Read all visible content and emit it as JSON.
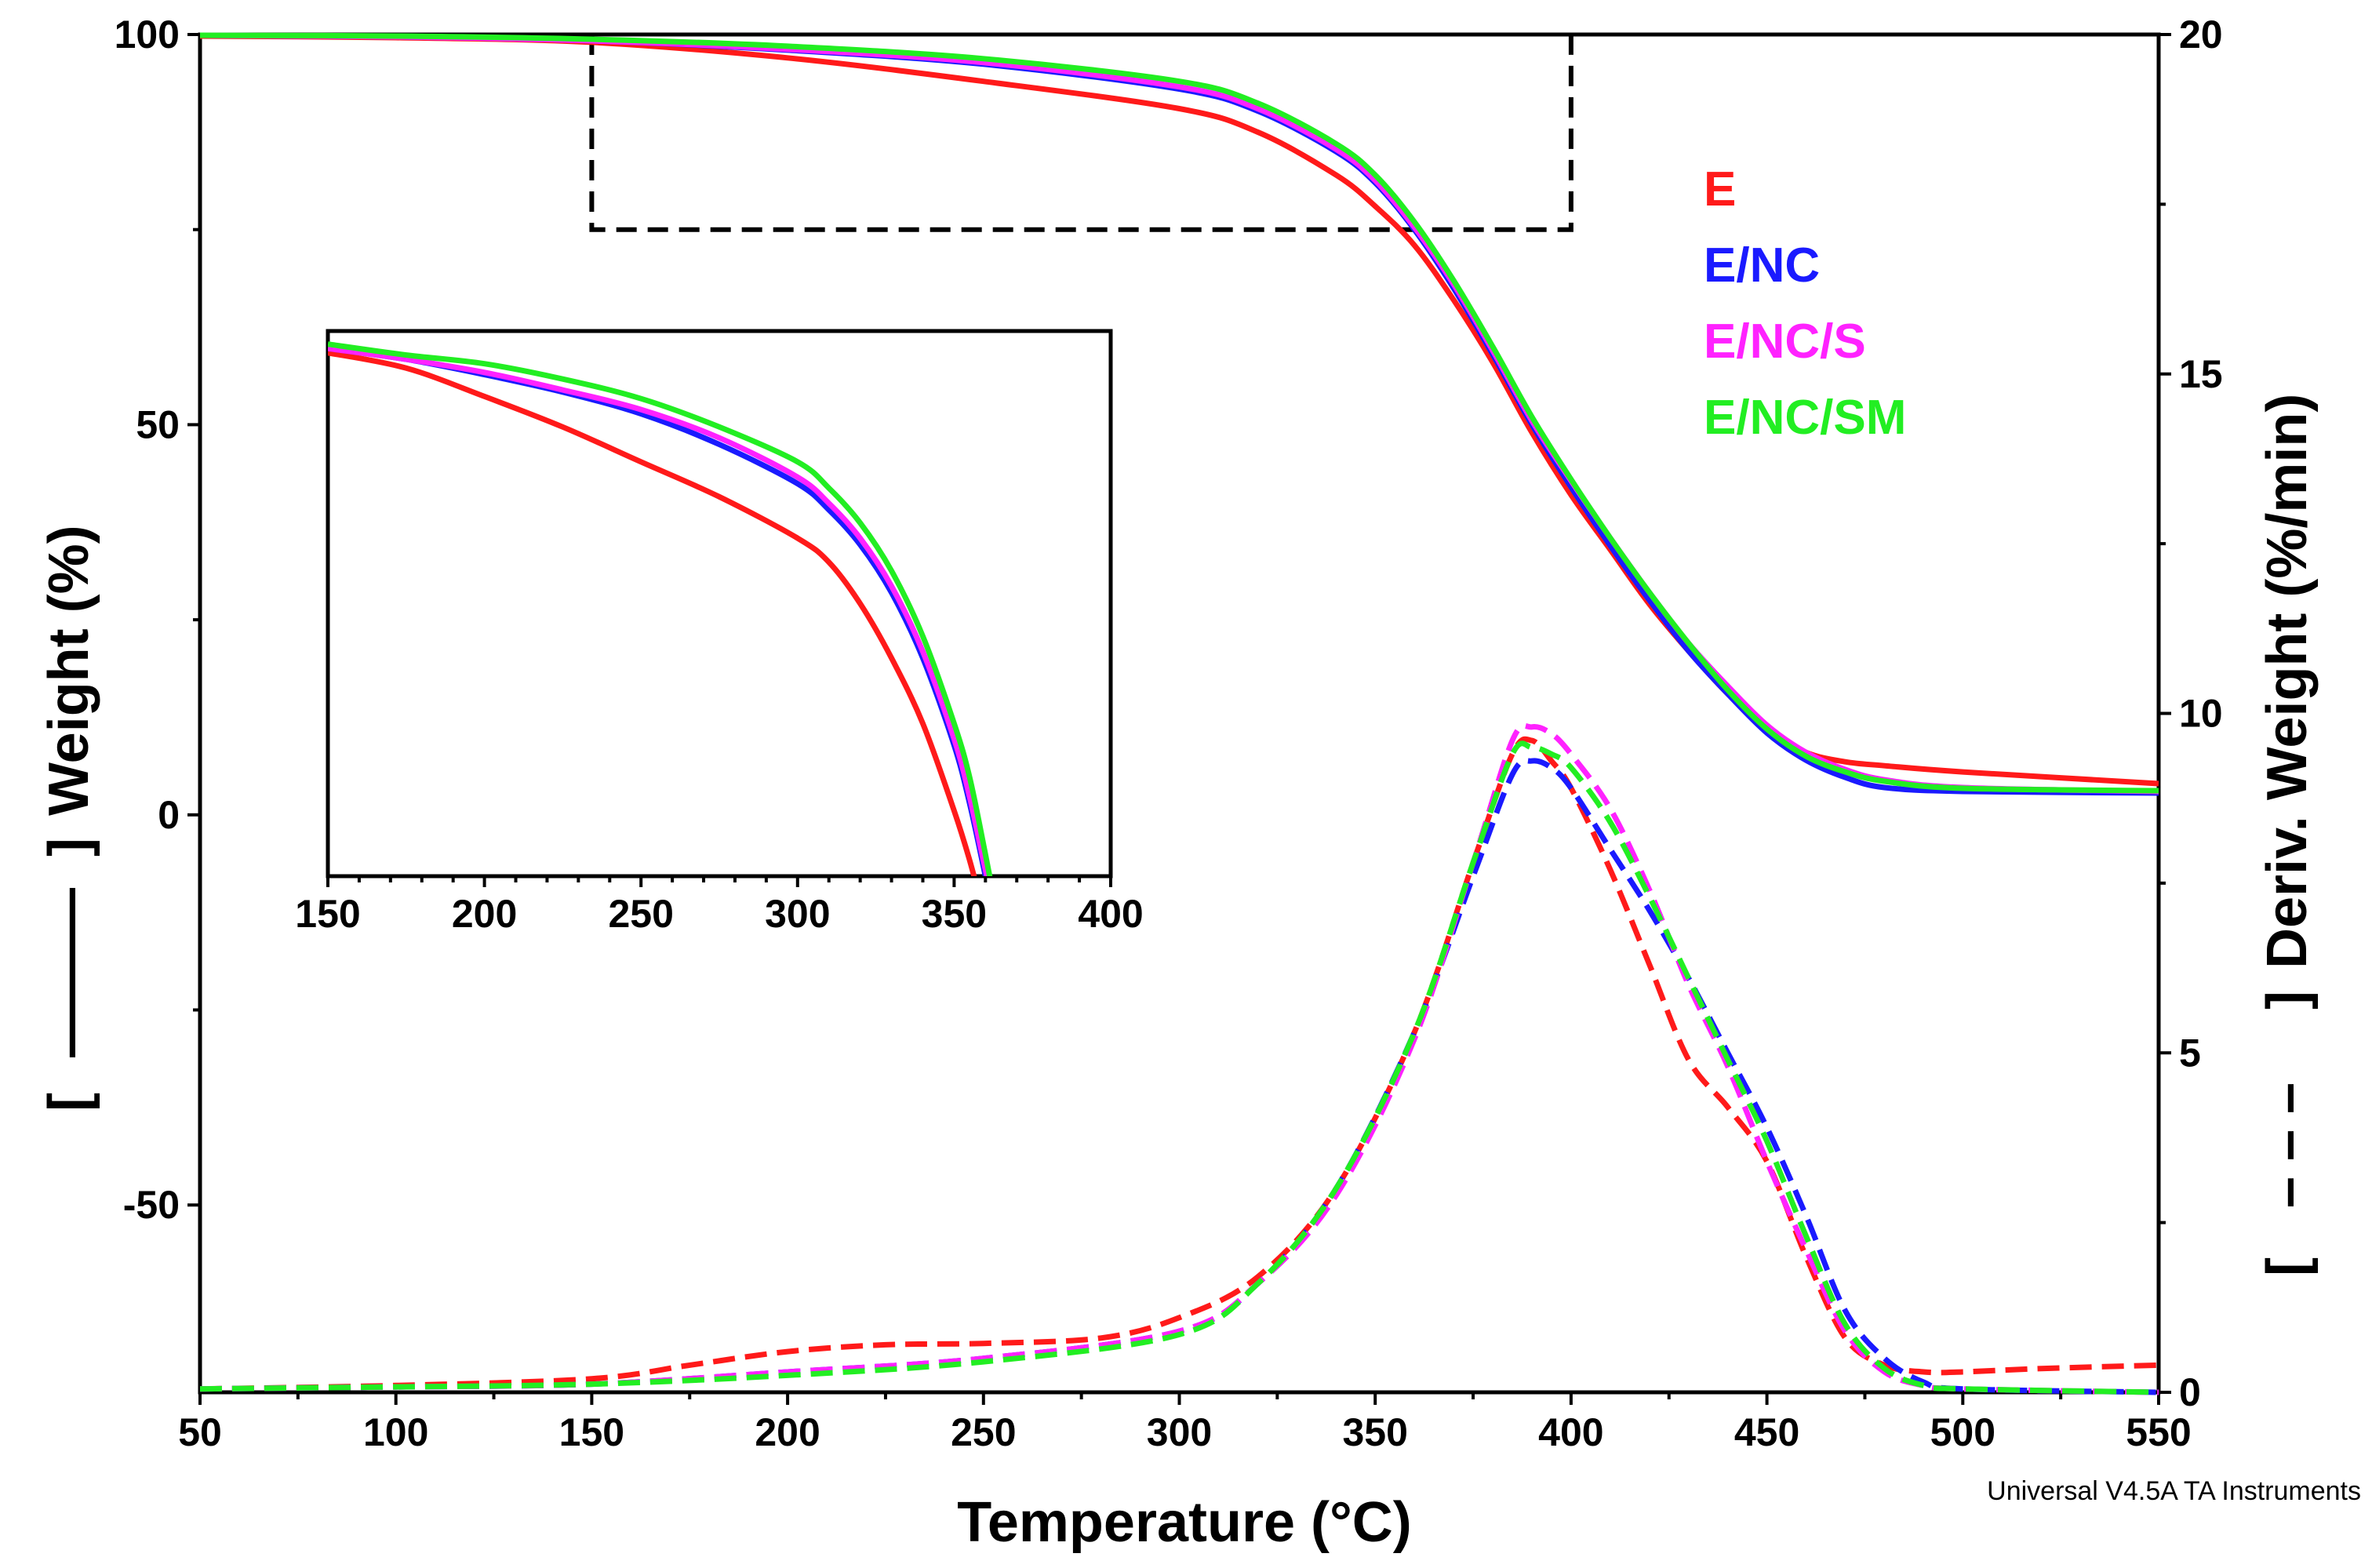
{
  "chart_data": {
    "type": "line",
    "software_label": "Universal V4.5A TA Instruments",
    "xlabel": "Temperature (°C)",
    "ylabel_left": "[ ——— ] Weight (%)",
    "ylabel_left_parts": {
      "open": "[",
      "dash": "———",
      "close": "]",
      "text": "Weight (%)"
    },
    "ylabel_right": "[ – – – ] Deriv. Weight (%/min)",
    "ylabel_right_parts": {
      "open": "[",
      "dash": "– – –",
      "close": "]",
      "text": "Deriv. Weight (%/min)"
    },
    "xlim": [
      50,
      550
    ],
    "ylim_left": [
      -74,
      100
    ],
    "ylim_right": [
      0,
      20
    ],
    "x_ticks": [
      50,
      100,
      150,
      200,
      250,
      300,
      350,
      400,
      450,
      500,
      550
    ],
    "y_left_ticks": [
      100,
      50,
      0,
      -50
    ],
    "y_right_ticks": [
      20,
      15,
      10,
      5,
      0
    ],
    "legend": [
      {
        "name": "E",
        "color": "#ff1a1a"
      },
      {
        "name": "E/NC",
        "color": "#1a1aff"
      },
      {
        "name": "E/NC/S",
        "color": "#ff22ff"
      },
      {
        "name": "E/NC/SM",
        "color": "#22ee22"
      }
    ],
    "zoom_box": {
      "x_range": [
        150,
        400
      ],
      "y_range": [
        75,
        100
      ]
    },
    "series_weight": [
      {
        "name": "E",
        "color": "#ff1a1a",
        "x": [
          50,
          100,
          150,
          200,
          250,
          300,
          320,
          340,
          350,
          360,
          370,
          380,
          390,
          400,
          410,
          420,
          430,
          440,
          450,
          460,
          470,
          480,
          500,
          550
        ],
        "y": [
          99.8,
          99.6,
          99,
          97,
          94,
          90.5,
          87.5,
          82,
          78,
          73,
          66,
          58,
          49,
          41,
          34,
          27,
          21,
          15.5,
          11,
          8,
          6.8,
          6.3,
          5.5,
          4
        ]
      },
      {
        "name": "E/NC",
        "color": "#1a1aff",
        "x": [
          50,
          100,
          150,
          200,
          250,
          300,
          320,
          340,
          350,
          360,
          370,
          380,
          390,
          400,
          410,
          420,
          430,
          440,
          450,
          460,
          470,
          480,
          500,
          550
        ],
        "y": [
          99.9,
          99.7,
          99.2,
          98,
          96.2,
          93,
          90.2,
          85,
          81,
          75,
          67.5,
          59,
          50,
          42,
          34.5,
          27.5,
          21,
          15.5,
          10.5,
          7,
          4.8,
          3.5,
          3,
          2.8
        ]
      },
      {
        "name": "E/NC/S",
        "color": "#ff22ff",
        "x": [
          50,
          100,
          150,
          200,
          250,
          300,
          320,
          340,
          350,
          360,
          370,
          380,
          390,
          400,
          410,
          420,
          430,
          440,
          450,
          460,
          470,
          480,
          500,
          550
        ],
        "y": [
          99.9,
          99.7,
          99.2,
          98.1,
          96.4,
          93.3,
          90.5,
          85.3,
          81.3,
          75.3,
          68,
          59.5,
          50.5,
          42.8,
          35.5,
          28.5,
          22,
          16.5,
          11.5,
          8,
          5.8,
          4.5,
          3.5,
          3
        ]
      },
      {
        "name": "E/NC/SM",
        "color": "#22ee22",
        "x": [
          50,
          100,
          150,
          200,
          250,
          300,
          320,
          340,
          350,
          360,
          370,
          380,
          390,
          400,
          410,
          420,
          430,
          440,
          450,
          460,
          470,
          480,
          500,
          550
        ],
        "y": [
          99.9,
          99.8,
          99.4,
          98.5,
          96.9,
          94,
          91.2,
          86,
          82,
          76,
          68.5,
          60,
          51,
          43,
          35.5,
          28.5,
          22,
          16,
          11,
          7.5,
          5.5,
          4.3,
          3.4,
          3.1
        ]
      }
    ],
    "series_deriv": [
      {
        "name": "E",
        "color": "#ff1a1a",
        "x": [
          50,
          100,
          150,
          175,
          200,
          225,
          250,
          280,
          300,
          320,
          340,
          360,
          375,
          385,
          390,
          395,
          400,
          410,
          420,
          430,
          440,
          450,
          460,
          470,
          480,
          490,
          500,
          520,
          550
        ],
        "y": [
          0.05,
          0.1,
          0.2,
          0.4,
          0.6,
          0.7,
          0.72,
          0.8,
          1.1,
          1.7,
          3.0,
          5.3,
          7.8,
          9.4,
          9.6,
          9.3,
          8.9,
          7.7,
          6.3,
          4.9,
          4.2,
          3.4,
          2.0,
          0.8,
          0.4,
          0.3,
          0.3,
          0.35,
          0.4
        ]
      },
      {
        "name": "E/NC",
        "color": "#1a1aff",
        "x": [
          50,
          100,
          150,
          200,
          250,
          300,
          320,
          340,
          360,
          375,
          385,
          390,
          395,
          400,
          410,
          420,
          430,
          440,
          450,
          460,
          470,
          480,
          490,
          500,
          550
        ],
        "y": [
          0.05,
          0.08,
          0.12,
          0.3,
          0.5,
          0.9,
          1.6,
          3.0,
          5.3,
          7.6,
          9.1,
          9.3,
          9.2,
          8.9,
          8.0,
          7.1,
          6.1,
          5.0,
          3.9,
          2.6,
          1.2,
          0.5,
          0.15,
          0.05,
          0.0
        ]
      },
      {
        "name": "E/NC/S",
        "color": "#ff22ff",
        "x": [
          50,
          100,
          150,
          200,
          250,
          300,
          320,
          340,
          360,
          375,
          385,
          390,
          395,
          400,
          410,
          420,
          430,
          440,
          450,
          460,
          470,
          480,
          490,
          500,
          550
        ],
        "y": [
          0.05,
          0.08,
          0.12,
          0.3,
          0.5,
          0.9,
          1.6,
          2.9,
          5.2,
          7.8,
          9.6,
          9.8,
          9.7,
          9.4,
          8.6,
          7.4,
          6.0,
          4.8,
          3.4,
          2.1,
          0.9,
          0.3,
          0.1,
          0.05,
          0.0
        ]
      },
      {
        "name": "E/NC/SM",
        "color": "#22ee22",
        "x": [
          50,
          100,
          150,
          200,
          250,
          300,
          320,
          340,
          360,
          375,
          385,
          390,
          395,
          400,
          410,
          420,
          430,
          440,
          450,
          460,
          470,
          480,
          490,
          500,
          550
        ],
        "y": [
          0.05,
          0.08,
          0.12,
          0.25,
          0.45,
          0.85,
          1.6,
          3.0,
          5.3,
          7.8,
          9.4,
          9.5,
          9.4,
          9.2,
          8.4,
          7.3,
          6.1,
          4.9,
          3.7,
          2.3,
          1.0,
          0.35,
          0.1,
          0.05,
          0.0
        ]
      }
    ],
    "inset": {
      "xlim": [
        150,
        400
      ],
      "ylim": [
        75,
        100
      ],
      "x_ticks": [
        150,
        200,
        250,
        300,
        350,
        400
      ],
      "series": [
        {
          "name": "E",
          "color": "#ff1a1a",
          "x": [
            150,
            175,
            200,
            225,
            250,
            275,
            300,
            310,
            320,
            330,
            340,
            350,
            355,
            360
          ],
          "y": [
            99,
            98.3,
            97,
            95.6,
            94,
            92.4,
            90.5,
            89.4,
            87.5,
            85,
            82,
            78,
            75.7,
            73
          ]
        },
        {
          "name": "E/NC",
          "color": "#1a1aff",
          "x": [
            150,
            175,
            200,
            225,
            250,
            275,
            300,
            310,
            320,
            330,
            340,
            350,
            355,
            360,
            363
          ],
          "y": [
            99.2,
            98.7,
            98,
            97.2,
            96.2,
            94.8,
            93,
            91.8,
            90.2,
            88,
            85,
            81,
            78.3,
            75,
            73
          ]
        },
        {
          "name": "E/NC/S",
          "color": "#ff22ff",
          "x": [
            150,
            175,
            200,
            225,
            250,
            275,
            300,
            310,
            320,
            330,
            340,
            350,
            355,
            360,
            364
          ],
          "y": [
            99.2,
            98.7,
            98.1,
            97.3,
            96.4,
            95.1,
            93.3,
            92.1,
            90.5,
            88.3,
            85.3,
            81.3,
            78.6,
            75.3,
            73
          ]
        },
        {
          "name": "E/NC/SM",
          "color": "#22ee22",
          "x": [
            150,
            175,
            200,
            225,
            250,
            275,
            300,
            310,
            320,
            330,
            340,
            350,
            355,
            360,
            364
          ],
          "y": [
            99.4,
            98.9,
            98.5,
            97.8,
            96.9,
            95.6,
            94,
            92.8,
            91.2,
            89,
            86,
            82,
            79.5,
            76,
            73
          ]
        }
      ]
    }
  }
}
